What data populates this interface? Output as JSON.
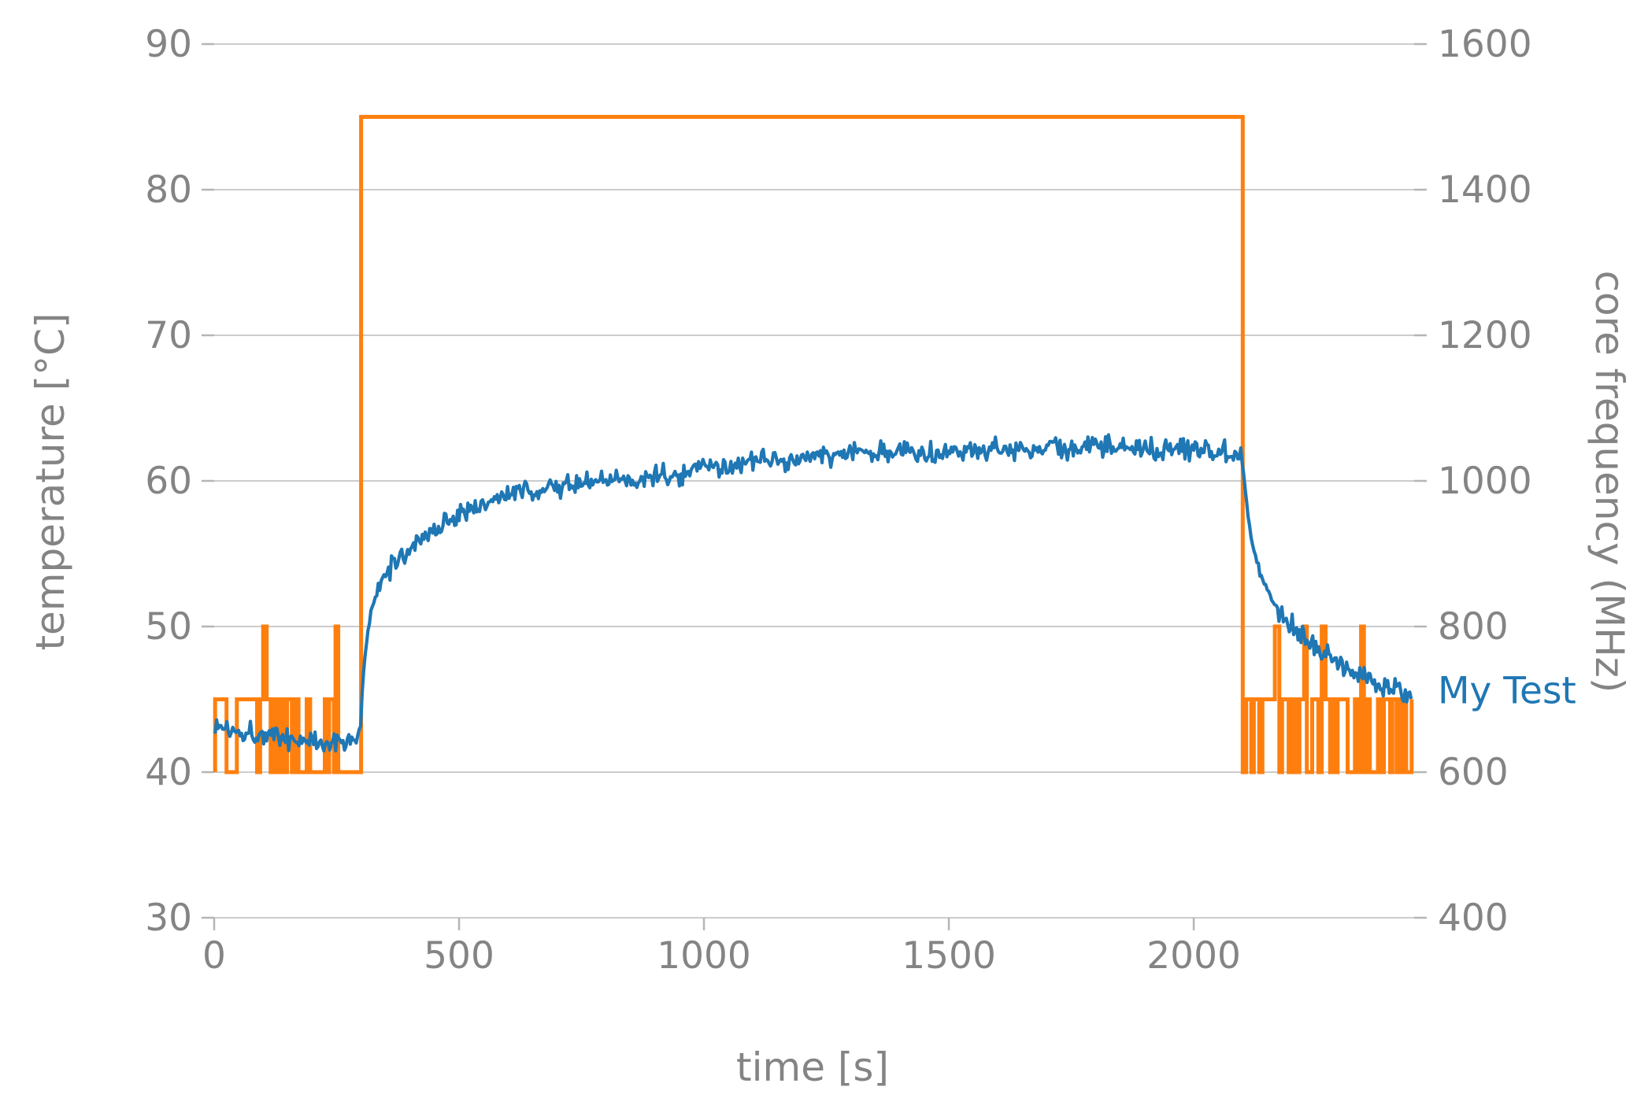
{
  "figure": {
    "background": "#ffffff",
    "grid_color": "#cccccc",
    "tick_color": "#b5b5b5",
    "label_color": "#848484",
    "tick_font_size": 47
  },
  "chart_data": {
    "type": "line",
    "title": "",
    "xlabel": "time [s]",
    "ylabel_left": "temperature [°C]",
    "ylabel_right": "core frequency (MHz)",
    "xlim": [
      0,
      2450
    ],
    "ylim_left": [
      30,
      90
    ],
    "ylim_right": [
      400,
      1600
    ],
    "xticks": [
      0,
      500,
      1000,
      1500,
      2000
    ],
    "yticks_left": [
      30,
      40,
      50,
      60,
      70,
      80,
      90
    ],
    "yticks_right": [
      400,
      600,
      800,
      1000,
      1200,
      1400,
      1600
    ],
    "grid": "horizontal",
    "legend_position": "none",
    "annotation": {
      "text": "My Test",
      "color": "#1f77b4"
    },
    "series": [
      {
        "name": "core_frequency",
        "axis": "right",
        "color": "#ff7f0e",
        "line_width": 5,
        "pattern": {
          "t_start": 2,
          "t_end": 2445,
          "idle_low": 600,
          "idle_high": 700,
          "spike": 800,
          "spike_chance": 0.07,
          "high_chance": 0.45,
          "seg_min": 2.5,
          "seg_max": 8,
          "load_level": 1500,
          "load_start": 300,
          "load_end": 2100
        }
      },
      {
        "name": "temperature",
        "axis": "left",
        "color": "#1f77b4",
        "line_width": 4.2,
        "noise": 0.45,
        "sample_step": 3,
        "keypoints": [
          [
            2,
            43.2
          ],
          [
            30,
            43.0
          ],
          [
            60,
            42.8
          ],
          [
            90,
            42.7
          ],
          [
            120,
            42.5
          ],
          [
            150,
            42.3
          ],
          [
            180,
            42.2
          ],
          [
            210,
            42.1
          ],
          [
            240,
            42.0
          ],
          [
            265,
            42.1
          ],
          [
            285,
            42.4
          ],
          [
            298,
            42.6
          ],
          [
            302,
            45.3
          ],
          [
            306,
            47.3
          ],
          [
            312,
            49.2
          ],
          [
            320,
            50.9
          ],
          [
            330,
            52.1
          ],
          [
            342,
            53.0
          ],
          [
            356,
            53.8
          ],
          [
            372,
            54.5
          ],
          [
            390,
            55.1
          ],
          [
            410,
            55.7
          ],
          [
            435,
            56.3
          ],
          [
            460,
            56.9
          ],
          [
            485,
            57.4
          ],
          [
            510,
            57.9
          ],
          [
            540,
            58.4
          ],
          [
            570,
            58.7
          ],
          [
            600,
            59.0
          ],
          [
            640,
            59.3
          ],
          [
            680,
            59.5
          ],
          [
            720,
            59.7
          ],
          [
            760,
            59.9
          ],
          [
            800,
            60.0
          ],
          [
            850,
            60.1
          ],
          [
            900,
            60.3
          ],
          [
            950,
            60.5
          ],
          [
            1000,
            60.8
          ],
          [
            1060,
            61.1
          ],
          [
            1120,
            61.3
          ],
          [
            1180,
            61.5
          ],
          [
            1240,
            61.7
          ],
          [
            1300,
            61.9
          ],
          [
            1360,
            62.0
          ],
          [
            1420,
            62.0
          ],
          [
            1480,
            62.1
          ],
          [
            1540,
            62.1
          ],
          [
            1600,
            62.2
          ],
          [
            1660,
            62.2
          ],
          [
            1720,
            62.2
          ],
          [
            1780,
            62.3
          ],
          [
            1840,
            62.3
          ],
          [
            1900,
            62.3
          ],
          [
            1960,
            62.2
          ],
          [
            2020,
            62.2
          ],
          [
            2060,
            62.1
          ],
          [
            2096,
            62.0
          ],
          [
            2102,
            60.4
          ],
          [
            2107,
            58.7
          ],
          [
            2113,
            57.1
          ],
          [
            2120,
            55.7
          ],
          [
            2130,
            54.4
          ],
          [
            2142,
            53.2
          ],
          [
            2156,
            52.2
          ],
          [
            2172,
            51.3
          ],
          [
            2190,
            50.5
          ],
          [
            2210,
            49.8
          ],
          [
            2232,
            49.1
          ],
          [
            2256,
            48.5
          ],
          [
            2282,
            47.9
          ],
          [
            2310,
            47.3
          ],
          [
            2340,
            46.7
          ],
          [
            2370,
            46.2
          ],
          [
            2400,
            45.8
          ],
          [
            2425,
            45.5
          ],
          [
            2445,
            45.3
          ]
        ]
      }
    ]
  }
}
